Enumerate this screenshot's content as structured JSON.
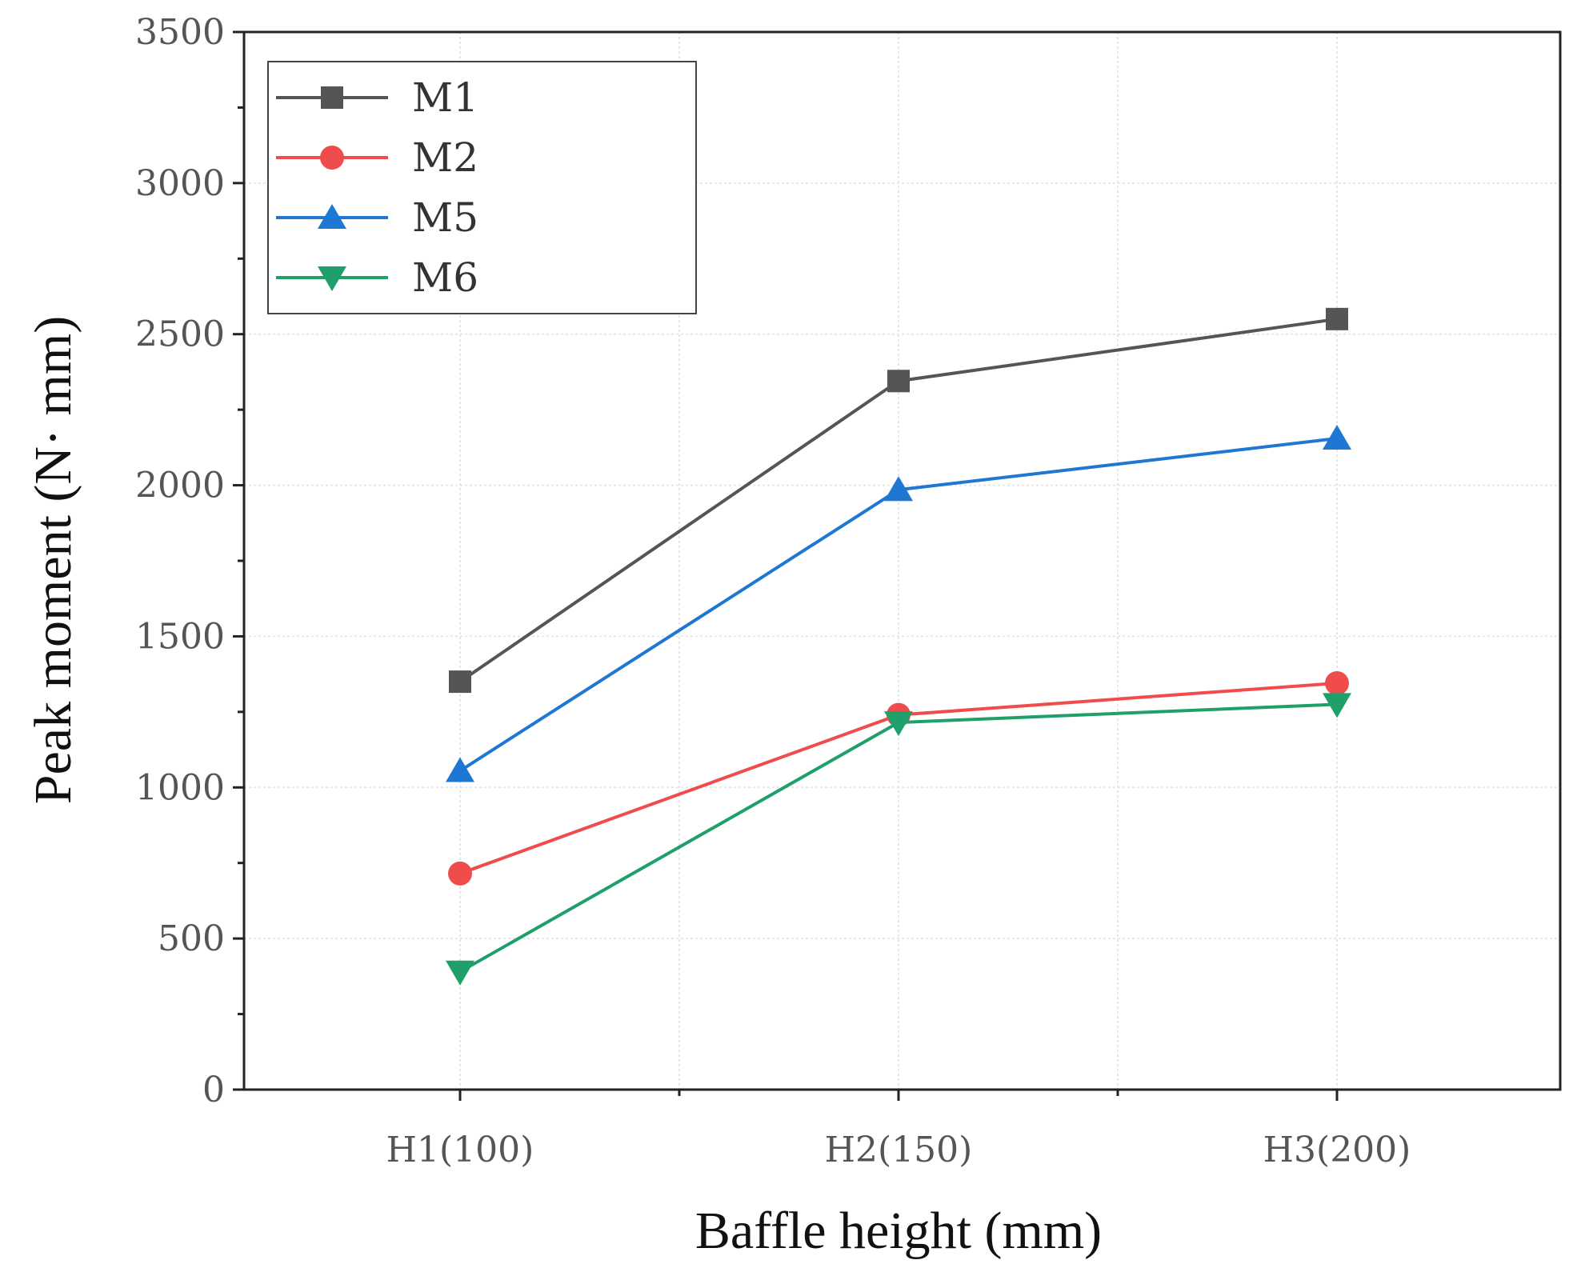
{
  "chart_data": {
    "type": "line",
    "title": "",
    "xlabel": "Baffle height (mm)",
    "ylabel": "Peak moment (N· mm)",
    "categories": [
      "H1(100)",
      "H2(150)",
      "H3(200)"
    ],
    "ylim": [
      0,
      3500
    ],
    "yticks": [
      0,
      500,
      1000,
      1500,
      2000,
      2500,
      3000,
      3500
    ],
    "grid": true,
    "legend_position": "top-left",
    "series": [
      {
        "name": "M1",
        "color": "#555555",
        "marker": "square",
        "values": [
          1350,
          2345,
          2550
        ]
      },
      {
        "name": "M2",
        "color": "#f04c4c",
        "marker": "circle",
        "values": [
          715,
          1240,
          1345
        ]
      },
      {
        "name": "M5",
        "color": "#1f77d4",
        "marker": "triangle-up",
        "values": [
          1055,
          1985,
          2155
        ]
      },
      {
        "name": "M6",
        "color": "#1fa06a",
        "marker": "triangle-down",
        "values": [
          390,
          1215,
          1275
        ]
      }
    ]
  }
}
